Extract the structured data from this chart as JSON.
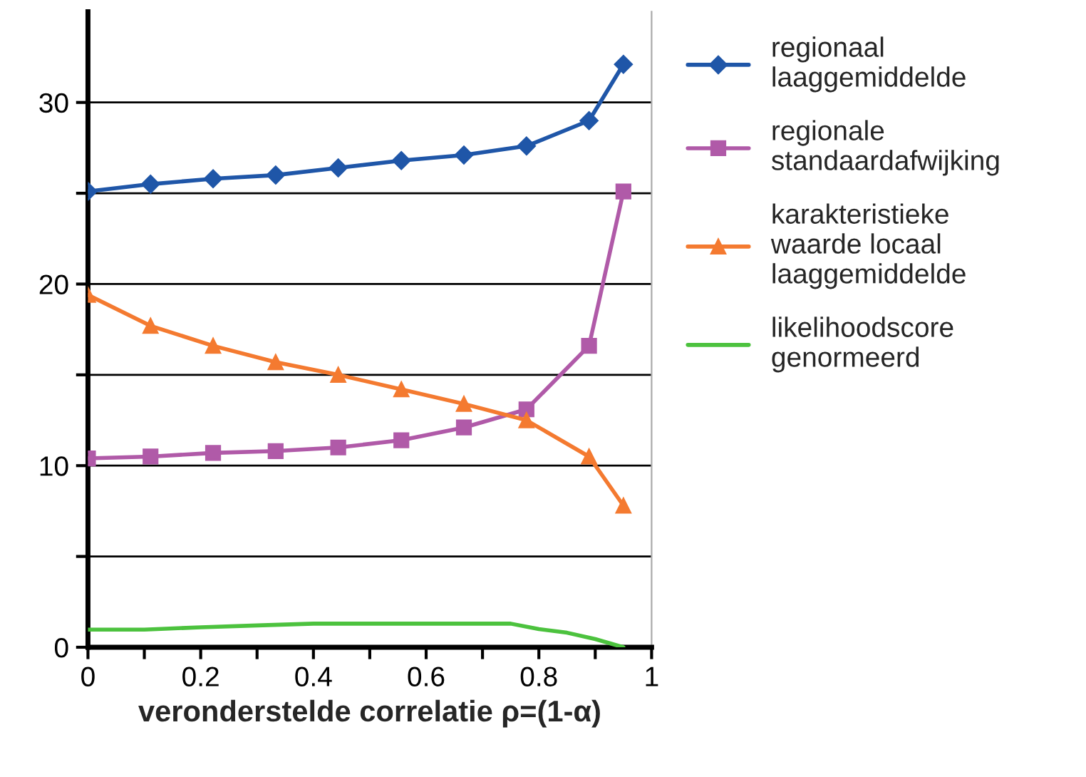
{
  "chart_data": {
    "type": "line",
    "xlabel": "veronderstelde correlatie ρ=(1-α)",
    "x": [
      0,
      0.111,
      0.222,
      0.333,
      0.444,
      0.556,
      0.667,
      0.778,
      0.889,
      0.95
    ],
    "series": [
      {
        "name": "regionaal\nlaaggemiddelde",
        "color": "#1f56a8",
        "marker": "diamond",
        "values": [
          25.1,
          25.5,
          25.8,
          26.0,
          26.4,
          26.8,
          27.1,
          27.6,
          29.0,
          32.1
        ]
      },
      {
        "name": "regionale\nstandaardafwijking",
        "color": "#b05aa8",
        "marker": "square",
        "values": [
          10.4,
          10.5,
          10.7,
          10.8,
          11.0,
          11.4,
          12.1,
          13.1,
          16.6,
          25.1
        ]
      },
      {
        "name": "karakteristieke\nwaarde locaal\nlaaggemiddelde",
        "color": "#f47a30",
        "marker": "triangle",
        "values": [
          19.4,
          17.7,
          16.6,
          15.7,
          15.0,
          14.2,
          13.4,
          12.5,
          10.5,
          7.8
        ]
      },
      {
        "name": "likelihoodscore\ngenormeerd",
        "color": "#4cc23e",
        "marker": "none",
        "x": [
          0,
          0.1,
          0.2,
          0.3,
          0.4,
          0.5,
          0.6,
          0.7,
          0.75,
          0.8,
          0.85,
          0.9,
          0.95
        ],
        "values": [
          0.97,
          0.97,
          1.1,
          1.2,
          1.3,
          1.3,
          1.3,
          1.3,
          1.3,
          1.0,
          0.8,
          0.45,
          0.0
        ]
      }
    ],
    "xlim": [
      0,
      1
    ],
    "xticks": [
      0,
      {
        "value": 0.1,
        "label": null
      },
      0.2,
      {
        "value": 0.3,
        "label": null
      },
      0.4,
      {
        "value": 0.5,
        "label": null
      },
      0.6,
      {
        "value": 0.7,
        "label": null
      },
      0.8,
      {
        "value": 0.9,
        "label": null
      },
      1
    ],
    "ylim": [
      0,
      35
    ],
    "yticks": [
      0,
      {
        "value": 5,
        "label": null
      },
      10,
      {
        "value": 15,
        "label": null
      },
      20,
      {
        "value": 25,
        "label": null
      },
      30
    ],
    "grid": "y",
    "legend": "right",
    "line_style": "solid"
  }
}
